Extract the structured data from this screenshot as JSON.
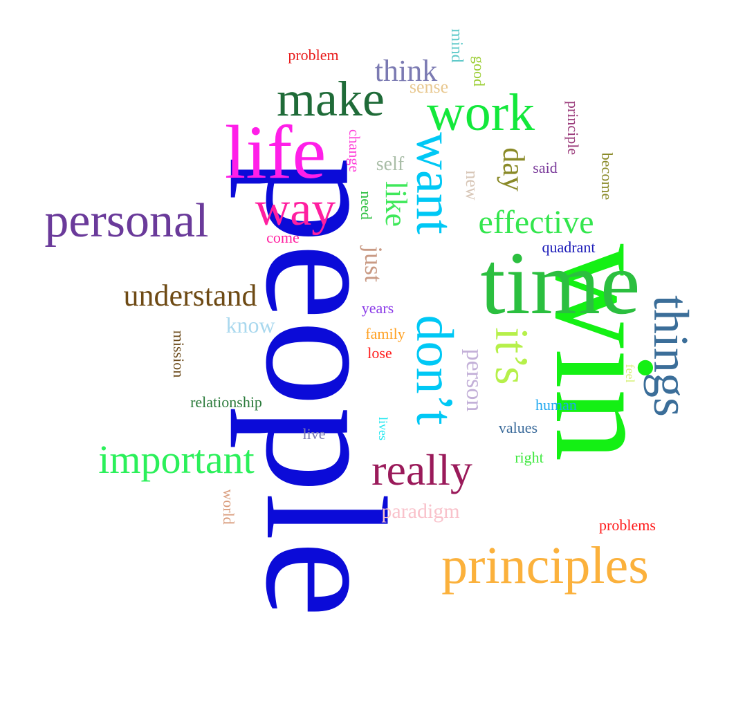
{
  "words": {
    "people": {
      "text": "people",
      "color": "#0b0bd8"
    },
    "win": {
      "text": "win",
      "color": "#14f014"
    },
    "time": {
      "text": "time",
      "color": "#2bbf3f"
    },
    "life": {
      "text": "life",
      "color": "#ff1fe8"
    },
    "want": {
      "text": "want",
      "color": "#00c8f5"
    },
    "dont": {
      "text": "don’t",
      "color": "#00c8f5"
    },
    "work": {
      "text": "work",
      "color": "#13e83b"
    },
    "make": {
      "text": "make",
      "color": "#1f6b38"
    },
    "principles": {
      "text": "principles",
      "color": "#fbb13c"
    },
    "things": {
      "text": "things",
      "color": "#3b6e99"
    },
    "its": {
      "text": "it’s",
      "color": "#b6f04a"
    },
    "personal": {
      "text": "personal",
      "color": "#6a3a9a"
    },
    "really": {
      "text": "really",
      "color": "#9a1a5a"
    },
    "way": {
      "text": "way",
      "color": "#ff1fa0"
    },
    "important": {
      "text": "important",
      "color": "#2bf05a"
    },
    "effective": {
      "text": "effective",
      "color": "#33e64d"
    },
    "understand": {
      "text": "understand",
      "color": "#6e4a14"
    },
    "think": {
      "text": "think",
      "color": "#7b7ab2"
    },
    "day": {
      "text": "day",
      "color": "#8a8a28"
    },
    "like": {
      "text": "like",
      "color": "#3fe85a"
    },
    "just": {
      "text": "just",
      "color": "#c99a84"
    },
    "person": {
      "text": "person",
      "color": "#c3b0d8"
    },
    "know": {
      "text": "know",
      "color": "#a9d8ee"
    },
    "paradigm": {
      "text": "paradigm",
      "color": "#f9c2cb"
    },
    "sense": {
      "text": "sense",
      "color": "#e8c890"
    },
    "self": {
      "text": "self",
      "color": "#a9bda7"
    },
    "new": {
      "text": "new",
      "color": "#d8c7b8"
    },
    "mind": {
      "text": "mind",
      "color": "#5fc9c9"
    },
    "good": {
      "text": "good",
      "color": "#9acd32"
    },
    "principle": {
      "text": "principle",
      "color": "#9a3a7a"
    },
    "become": {
      "text": "become",
      "color": "#8a8a28"
    },
    "said": {
      "text": "said",
      "color": "#7a3a9a"
    },
    "change": {
      "text": "change",
      "color": "#ff3fd8"
    },
    "need": {
      "text": "need",
      "color": "#2bbf3f"
    },
    "come": {
      "text": "come",
      "color": "#ff1fa0"
    },
    "quadrant": {
      "text": "quadrant",
      "color": "#1a1ab8"
    },
    "years": {
      "text": "years",
      "color": "#8a3ae8"
    },
    "family": {
      "text": "family",
      "color": "#ffa020"
    },
    "lose": {
      "text": "lose",
      "color": "#ff1a1a"
    },
    "mission": {
      "text": "mission",
      "color": "#6b4a1a"
    },
    "relationship": {
      "text": "relationship",
      "color": "#2a7a3a"
    },
    "human": {
      "text": "human",
      "color": "#20a8f0"
    },
    "feel": {
      "text": "feel",
      "color": "#d8f07a"
    },
    "values": {
      "text": "values",
      "color": "#3a6a9a"
    },
    "lives": {
      "text": "lives",
      "color": "#20e8f0"
    },
    "live": {
      "text": "live",
      "color": "#7a7ab2"
    },
    "right": {
      "text": "right",
      "color": "#3fe83f"
    },
    "world": {
      "text": "world",
      "color": "#d89a7a"
    },
    "problems": {
      "text": "problems",
      "color": "#ff1a1a"
    },
    "problem": {
      "text": "problem",
      "color": "#e81a1a"
    }
  }
}
